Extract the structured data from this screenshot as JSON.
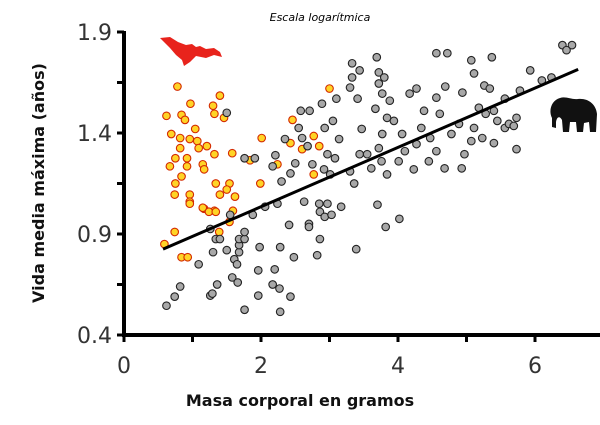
{
  "chart_data": {
    "type": "scatter",
    "title": "Escala logarítmica",
    "xlabel": "Masa corporal en gramos",
    "ylabel": "Vida media máxima (años)",
    "xlim": [
      0,
      6.9
    ],
    "ylim": [
      0.4,
      1.9
    ],
    "x_ticks": [
      "0",
      "2",
      "4",
      "6"
    ],
    "y_ticks": [
      "0.4",
      "0.9",
      "1.4",
      "1.9"
    ],
    "grid": false,
    "colors": {
      "bats_fill": "#ffd426",
      "bats_stroke": "#d42a00",
      "others_fill": "#a8a8a8",
      "others_stroke": "#222222",
      "trend": "#000000",
      "bat_icon": "#e8231c",
      "elephant_icon": "#111111"
    },
    "icons": [
      "bat-silhouette",
      "elephant-silhouette"
    ],
    "trendline": [
      [
        0.57,
        0.825
      ],
      [
        6.63,
        1.715
      ]
    ],
    "series": [
      {
        "group": "bats",
        "points": [
          [
            0.78,
            1.63
          ],
          [
            0.62,
            1.485
          ],
          [
            0.84,
            1.49
          ],
          [
            0.97,
            1.545
          ],
          [
            0.89,
            1.465
          ],
          [
            1.04,
            1.42
          ],
          [
            1.4,
            1.585
          ],
          [
            1.3,
            1.535
          ],
          [
            1.32,
            1.495
          ],
          [
            1.46,
            1.475
          ],
          [
            0.69,
            1.395
          ],
          [
            0.82,
            1.375
          ],
          [
            0.96,
            1.37
          ],
          [
            1.07,
            1.36
          ],
          [
            1.21,
            1.335
          ],
          [
            0.82,
            1.325
          ],
          [
            0.75,
            1.275
          ],
          [
            0.92,
            1.275
          ],
          [
            1.09,
            1.325
          ],
          [
            1.32,
            1.295
          ],
          [
            0.67,
            1.235
          ],
          [
            0.92,
            1.235
          ],
          [
            1.15,
            1.245
          ],
          [
            1.17,
            1.22
          ],
          [
            1.58,
            1.3
          ],
          [
            0.84,
            1.185
          ],
          [
            0.75,
            1.15
          ],
          [
            0.74,
            1.095
          ],
          [
            0.96,
            1.095
          ],
          [
            0.96,
            1.06
          ],
          [
            1.34,
            1.15
          ],
          [
            1.54,
            1.15
          ],
          [
            1.4,
            1.095
          ],
          [
            1.5,
            1.12
          ],
          [
            1.62,
            1.085
          ],
          [
            1.17,
            1.025
          ],
          [
            1.32,
            1.015
          ],
          [
            1.59,
            1.015
          ],
          [
            1.99,
            1.15
          ],
          [
            1.84,
            1.265
          ],
          [
            2.01,
            1.375
          ],
          [
            2.24,
            1.245
          ],
          [
            2.46,
            1.465
          ],
          [
            2.43,
            1.35
          ],
          [
            2.6,
            1.32
          ],
          [
            2.77,
            1.385
          ],
          [
            2.85,
            1.335
          ],
          [
            2.77,
            1.195
          ],
          [
            3.0,
            1.62
          ],
          [
            0.96,
            1.05
          ],
          [
            1.15,
            1.03
          ],
          [
            1.24,
            1.01
          ],
          [
            1.34,
            1.01
          ],
          [
            1.54,
            0.96
          ],
          [
            0.74,
            0.91
          ],
          [
            1.39,
            0.91
          ],
          [
            0.59,
            0.85
          ],
          [
            0.84,
            0.785
          ],
          [
            0.93,
            0.785
          ]
        ]
      },
      {
        "group": "others",
        "points": [
          [
            0.62,
            0.545
          ],
          [
            0.74,
            0.59
          ],
          [
            0.82,
            0.64
          ],
          [
            1.09,
            0.75
          ],
          [
            1.26,
            0.595
          ],
          [
            1.29,
            0.605
          ],
          [
            1.36,
            0.65
          ],
          [
            1.3,
            0.81
          ],
          [
            1.26,
            0.925
          ],
          [
            1.34,
            0.875
          ],
          [
            1.4,
            0.875
          ],
          [
            1.5,
            0.82
          ],
          [
            1.58,
            0.685
          ],
          [
            1.66,
            0.66
          ],
          [
            1.61,
            0.775
          ],
          [
            1.65,
            0.75
          ],
          [
            1.68,
            0.81
          ],
          [
            1.68,
            0.845
          ],
          [
            1.68,
            0.875
          ],
          [
            1.76,
            0.875
          ],
          [
            1.76,
            0.91
          ],
          [
            1.76,
            0.525
          ],
          [
            1.55,
            0.995
          ],
          [
            1.88,
            0.995
          ],
          [
            1.98,
            0.835
          ],
          [
            1.96,
            0.72
          ],
          [
            1.96,
            0.595
          ],
          [
            2.06,
            1.035
          ],
          [
            2.2,
            0.725
          ],
          [
            2.17,
            0.65
          ],
          [
            2.27,
            0.63
          ],
          [
            2.28,
            0.835
          ],
          [
            2.28,
            0.515
          ],
          [
            2.43,
            0.59
          ],
          [
            2.41,
            0.945
          ],
          [
            2.48,
            0.785
          ],
          [
            2.7,
            0.95
          ],
          [
            2.7,
            0.935
          ],
          [
            2.86,
            0.875
          ],
          [
            2.82,
            0.795
          ],
          [
            2.86,
            1.01
          ],
          [
            2.93,
            0.985
          ],
          [
            3.03,
            0.995
          ],
          [
            3.17,
            1.035
          ],
          [
            3.39,
            0.825
          ],
          [
            3.7,
            1.045
          ],
          [
            3.82,
            0.935
          ],
          [
            4.02,
            0.975
          ],
          [
            2.24,
            1.05
          ],
          [
            2.63,
            1.06
          ],
          [
            2.85,
            1.05
          ],
          [
            2.97,
            1.05
          ],
          [
            1.5,
            1.5
          ],
          [
            1.76,
            1.275
          ],
          [
            1.91,
            1.275
          ],
          [
            2.21,
            1.29
          ],
          [
            2.17,
            1.235
          ],
          [
            2.3,
            1.16
          ],
          [
            2.35,
            1.37
          ],
          [
            2.55,
            1.425
          ],
          [
            2.6,
            1.375
          ],
          [
            2.5,
            1.25
          ],
          [
            2.43,
            1.2
          ],
          [
            2.68,
            1.335
          ],
          [
            2.75,
            1.245
          ],
          [
            2.58,
            1.51
          ],
          [
            2.71,
            1.51
          ],
          [
            2.89,
            1.545
          ],
          [
            3.1,
            1.57
          ],
          [
            2.93,
            1.425
          ],
          [
            3.05,
            1.46
          ],
          [
            2.97,
            1.295
          ],
          [
            3.08,
            1.275
          ],
          [
            2.92,
            1.22
          ],
          [
            3.14,
            1.37
          ],
          [
            3.01,
            1.195
          ],
          [
            3.33,
            1.745
          ],
          [
            3.44,
            1.71
          ],
          [
            3.33,
            1.675
          ],
          [
            3.3,
            1.625
          ],
          [
            3.41,
            1.57
          ],
          [
            3.47,
            1.42
          ],
          [
            3.44,
            1.295
          ],
          [
            3.3,
            1.21
          ],
          [
            3.36,
            1.15
          ],
          [
            3.55,
            1.295
          ],
          [
            3.61,
            1.225
          ],
          [
            3.67,
            1.52
          ],
          [
            3.69,
            1.775
          ],
          [
            3.72,
            1.7
          ],
          [
            3.8,
            1.675
          ],
          [
            3.72,
            1.645
          ],
          [
            3.77,
            1.595
          ],
          [
            3.88,
            1.56
          ],
          [
            3.84,
            1.475
          ],
          [
            3.77,
            1.395
          ],
          [
            3.72,
            1.325
          ],
          [
            3.76,
            1.26
          ],
          [
            3.84,
            1.195
          ],
          [
            3.94,
            1.46
          ],
          [
            4.06,
            1.395
          ],
          [
            4.1,
            1.31
          ],
          [
            4.01,
            1.26
          ],
          [
            4.17,
            1.595
          ],
          [
            4.27,
            1.62
          ],
          [
            4.34,
            1.425
          ],
          [
            4.27,
            1.345
          ],
          [
            4.23,
            1.22
          ],
          [
            4.56,
            1.795
          ],
          [
            4.72,
            1.795
          ],
          [
            4.56,
            1.575
          ],
          [
            4.69,
            1.63
          ],
          [
            4.38,
            1.51
          ],
          [
            4.47,
            1.375
          ],
          [
            4.56,
            1.31
          ],
          [
            4.45,
            1.26
          ],
          [
            4.68,
            1.225
          ],
          [
            4.61,
            1.495
          ],
          [
            4.78,
            1.395
          ],
          [
            4.89,
            1.445
          ],
          [
            4.97,
            1.295
          ],
          [
            4.93,
            1.225
          ],
          [
            4.94,
            1.6
          ],
          [
            5.07,
            1.76
          ],
          [
            5.11,
            1.695
          ],
          [
            5.26,
            1.635
          ],
          [
            5.37,
            1.775
          ],
          [
            5.34,
            1.62
          ],
          [
            5.18,
            1.525
          ],
          [
            5.28,
            1.495
          ],
          [
            5.11,
            1.425
          ],
          [
            5.23,
            1.375
          ],
          [
            5.07,
            1.36
          ],
          [
            5.4,
            1.51
          ],
          [
            5.56,
            1.57
          ],
          [
            5.45,
            1.46
          ],
          [
            5.73,
            1.475
          ],
          [
            5.56,
            1.425
          ],
          [
            5.4,
            1.35
          ],
          [
            5.73,
            1.32
          ],
          [
            5.78,
            1.61
          ],
          [
            5.93,
            1.71
          ],
          [
            6.1,
            1.66
          ],
          [
            6.24,
            1.675
          ],
          [
            5.62,
            1.445
          ],
          [
            5.69,
            1.435
          ],
          [
            6.4,
            1.835
          ],
          [
            6.54,
            1.835
          ],
          [
            6.46,
            1.81
          ]
        ]
      }
    ]
  }
}
